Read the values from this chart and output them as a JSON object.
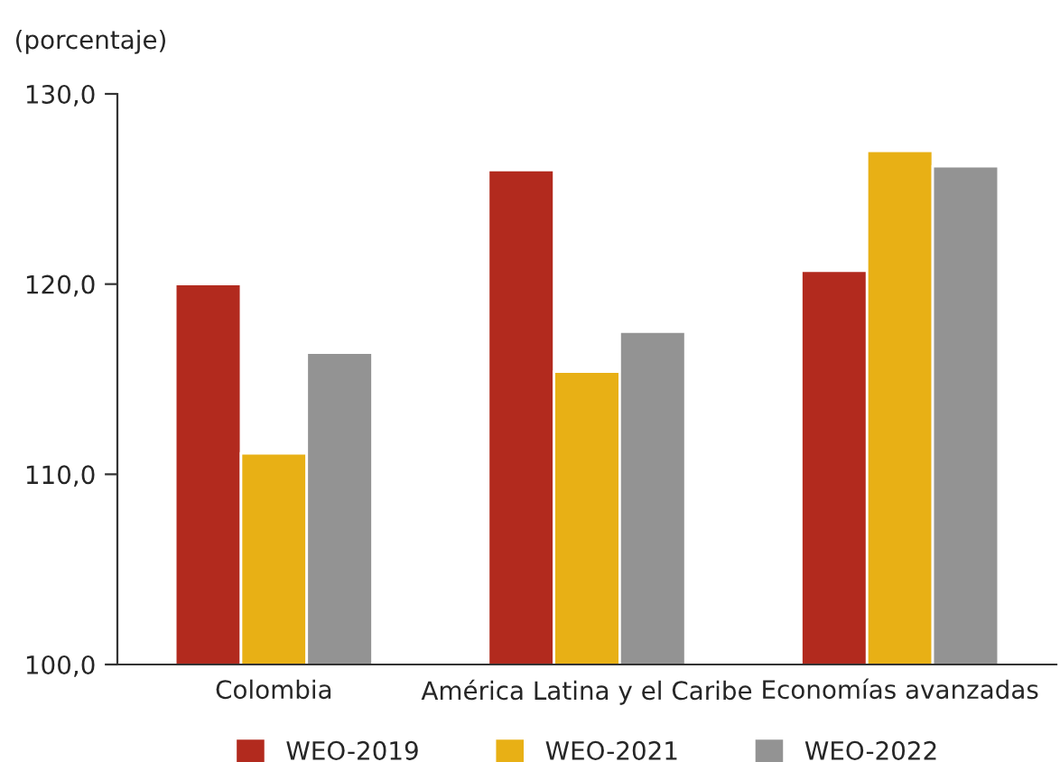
{
  "chart_data": {
    "type": "bar",
    "ylabel": "(porcentaje)",
    "categories": [
      "Colombia",
      "América Latina y el Caribe",
      "Economías avanzadas"
    ],
    "series": [
      {
        "name": "WEO-2019",
        "color": "#b22a1e",
        "values": [
          120.0,
          126.0,
          120.7
        ]
      },
      {
        "name": "WEO-2021",
        "color": "#e8b015",
        "values": [
          111.1,
          115.4,
          127.0
        ]
      },
      {
        "name": "WEO-2022",
        "color": "#939393",
        "values": [
          116.4,
          117.5,
          126.2
        ]
      }
    ],
    "ylim": [
      100,
      130
    ],
    "yticks": [
      {
        "value": 100,
        "label": "100,0"
      },
      {
        "value": 110,
        "label": "110,0"
      },
      {
        "value": 120,
        "label": "120,0"
      },
      {
        "value": 130,
        "label": "130,0"
      }
    ],
    "grid": false,
    "legend": "bottom"
  }
}
